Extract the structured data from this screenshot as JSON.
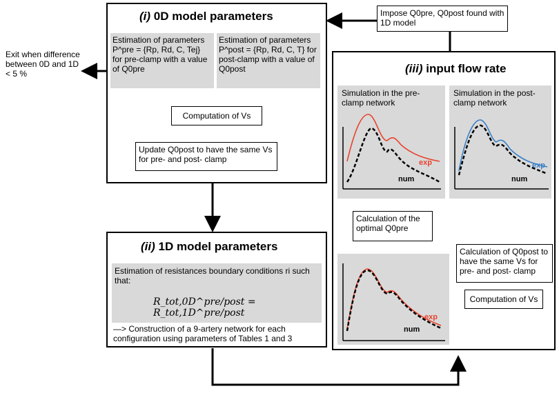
{
  "exit_text": "Exit when difference between 0D and 1D < 5 %",
  "impose": {
    "text": "Impose Q0pre, Q0post found with 1D model"
  },
  "box0d": {
    "num": "(i)",
    "title": "0D model parameters",
    "pre": "Estimation of parameters P^pre = {Rp, Rd, C, Tej} for pre-clamp with a value of Q0pre",
    "post": "Estimation of parameters P^post = {Rp, Rd, C, T} for post-clamp with a value of Q0post",
    "vs": "Computation of Vs",
    "update": "Update Q0post to have the same Vs for pre- and post- clamp"
  },
  "box1d": {
    "num": "(ii)",
    "title": "1D model parameters",
    "estimation": "Estimation of resistances boundary conditions ri such that:",
    "equation": "R_tot,0D^pre/post = R_tot,1D^pre/post",
    "construction": "—> Construction of a 9-artery network for each configuration using parameters of Tables 1 and 3"
  },
  "box3": {
    "num": "(iii)",
    "title": "input flow rate",
    "sim_pre": "Simulation in the pre-clamp network",
    "sim_post": "Simulation in the post-clamp network",
    "calc_opt": "Calculation of the optimal Q0pre",
    "calc_q0post": "Calculation of Q0post to have the same Vs for pre- and post- clamp",
    "comp_vs": "Computation of Vs",
    "exp": "exp",
    "num_lbl": "num"
  },
  "colors": {
    "exp_pre": "#e8432e",
    "exp_post": "#3a7fc8",
    "panel": "#d9d9d9"
  }
}
